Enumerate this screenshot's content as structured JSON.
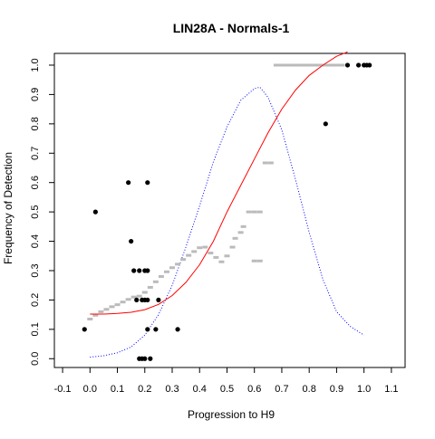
{
  "chart_data": {
    "type": "scatter",
    "title": "LIN28A - Normals-1",
    "xlabel": "Progression to H9",
    "ylabel": "Frequency of Detection",
    "xlim": [
      -0.13,
      1.15
    ],
    "ylim": [
      -0.03,
      1.04
    ],
    "x_ticks": [
      -0.1,
      0,
      0.1,
      0.2,
      0.3,
      0.4,
      0.5,
      0.6,
      0.7,
      0.8,
      0.9,
      1,
      1.1
    ],
    "x_tick_labels": [
      "-0.1",
      "0.0",
      "0.1",
      "0.2",
      "0.3",
      "0.4",
      "0.5",
      "0.6",
      "0.7",
      "0.8",
      "0.9",
      "1.0",
      "1.1"
    ],
    "y_ticks": [
      0,
      0.1,
      0.2,
      0.3,
      0.4,
      0.5,
      0.6,
      0.7,
      0.8,
      0.9,
      1
    ],
    "y_tick_labels": [
      "0.0",
      "0.1",
      "0.2",
      "0.3",
      "0.4",
      "0.5",
      "0.6",
      "0.7",
      "0.8",
      "0.9",
      "1.0"
    ],
    "grid": false,
    "legend": "none",
    "colors": {
      "points": "#000000",
      "smoothed": "#bbbbbb",
      "logistic_fit": "#ff0000",
      "density": "#0000ff"
    },
    "series": [
      {
        "values": [
          {
            "x": -0.02,
            "y": 0.1
          },
          {
            "x": 0.02,
            "y": 0.5
          },
          {
            "x": 0.14,
            "y": 0.6
          },
          {
            "x": 0.15,
            "y": 0.4
          },
          {
            "x": 0.16,
            "y": 0.3
          },
          {
            "x": 0.18,
            "y": 0.3
          },
          {
            "x": 0.2,
            "y": 0.3
          },
          {
            "x": 0.21,
            "y": 0.3
          },
          {
            "x": 0.21,
            "y": 0.6
          },
          {
            "x": 0.17,
            "y": 0.2
          },
          {
            "x": 0.19,
            "y": 0.2
          },
          {
            "x": 0.2,
            "y": 0.2
          },
          {
            "x": 0.21,
            "y": 0.2
          },
          {
            "x": 0.25,
            "y": 0.2
          },
          {
            "x": 0.21,
            "y": 0.1
          },
          {
            "x": 0.24,
            "y": 0.1
          },
          {
            "x": 0.32,
            "y": 0.1
          },
          {
            "x": 0.18,
            "y": 0.0
          },
          {
            "x": 0.19,
            "y": 0.0
          },
          {
            "x": 0.2,
            "y": 0.0
          },
          {
            "x": 0.22,
            "y": 0.0
          },
          {
            "x": 0.86,
            "y": 0.8
          },
          {
            "x": 0.94,
            "y": 1.0
          },
          {
            "x": 0.98,
            "y": 1.0
          },
          {
            "x": 1.0,
            "y": 1.0
          },
          {
            "x": 1.01,
            "y": 1.0
          },
          {
            "x": 1.02,
            "y": 1.0
          }
        ]
      },
      {
        "values": [
          {
            "x": 0.0,
            "y": 0.135
          },
          {
            "x": 0.02,
            "y": 0.148
          },
          {
            "x": 0.04,
            "y": 0.16
          },
          {
            "x": 0.06,
            "y": 0.168
          },
          {
            "x": 0.08,
            "y": 0.177
          },
          {
            "x": 0.1,
            "y": 0.184
          },
          {
            "x": 0.12,
            "y": 0.193
          },
          {
            "x": 0.14,
            "y": 0.202
          },
          {
            "x": 0.16,
            "y": 0.21
          },
          {
            "x": 0.18,
            "y": 0.213
          },
          {
            "x": 0.2,
            "y": 0.226
          },
          {
            "x": 0.22,
            "y": 0.243
          },
          {
            "x": 0.24,
            "y": 0.262
          },
          {
            "x": 0.26,
            "y": 0.28
          },
          {
            "x": 0.28,
            "y": 0.296
          },
          {
            "x": 0.3,
            "y": 0.31
          },
          {
            "x": 0.32,
            "y": 0.322
          },
          {
            "x": 0.34,
            "y": 0.338
          },
          {
            "x": 0.36,
            "y": 0.352
          },
          {
            "x": 0.38,
            "y": 0.365
          },
          {
            "x": 0.4,
            "y": 0.378
          },
          {
            "x": 0.42,
            "y": 0.38
          },
          {
            "x": 0.44,
            "y": 0.36
          },
          {
            "x": 0.46,
            "y": 0.345
          },
          {
            "x": 0.48,
            "y": 0.33
          },
          {
            "x": 0.5,
            "y": 0.35
          },
          {
            "x": 0.52,
            "y": 0.38
          },
          {
            "x": 0.53,
            "y": 0.41
          },
          {
            "x": 0.55,
            "y": 0.43
          },
          {
            "x": 0.56,
            "y": 0.45
          },
          {
            "x": 0.58,
            "y": 0.5
          },
          {
            "x": 0.6,
            "y": 0.5
          },
          {
            "x": 0.62,
            "y": 0.5
          },
          {
            "x": 0.6,
            "y": 0.333
          },
          {
            "x": 0.62,
            "y": 0.333
          },
          {
            "x": 0.64,
            "y": 0.667
          },
          {
            "x": 0.66,
            "y": 0.667
          },
          {
            "x": 0.68,
            "y": 1.0
          },
          {
            "x": 0.72,
            "y": 1.0
          },
          {
            "x": 0.76,
            "y": 1.0
          },
          {
            "x": 0.8,
            "y": 1.0
          },
          {
            "x": 0.84,
            "y": 1.0
          },
          {
            "x": 0.88,
            "y": 1.0
          },
          {
            "x": 0.92,
            "y": 1.0
          }
        ]
      },
      {
        "values": [
          {
            "x": 0.0,
            "y": 0.152
          },
          {
            "x": 0.05,
            "y": 0.152
          },
          {
            "x": 0.1,
            "y": 0.154
          },
          {
            "x": 0.15,
            "y": 0.158
          },
          {
            "x": 0.2,
            "y": 0.167
          },
          {
            "x": 0.25,
            "y": 0.185
          },
          {
            "x": 0.3,
            "y": 0.215
          },
          {
            "x": 0.35,
            "y": 0.26
          },
          {
            "x": 0.4,
            "y": 0.32
          },
          {
            "x": 0.45,
            "y": 0.4
          },
          {
            "x": 0.5,
            "y": 0.5
          },
          {
            "x": 0.55,
            "y": 0.59
          },
          {
            "x": 0.6,
            "y": 0.68
          },
          {
            "x": 0.65,
            "y": 0.77
          },
          {
            "x": 0.7,
            "y": 0.85
          },
          {
            "x": 0.75,
            "y": 0.915
          },
          {
            "x": 0.8,
            "y": 0.965
          },
          {
            "x": 0.85,
            "y": 1.0
          },
          {
            "x": 0.9,
            "y": 1.03
          },
          {
            "x": 0.94,
            "y": 1.045
          }
        ]
      },
      {
        "values": [
          {
            "x": 0.0,
            "y": 0.005
          },
          {
            "x": 0.05,
            "y": 0.01
          },
          {
            "x": 0.1,
            "y": 0.02
          },
          {
            "x": 0.15,
            "y": 0.04
          },
          {
            "x": 0.2,
            "y": 0.08
          },
          {
            "x": 0.25,
            "y": 0.15
          },
          {
            "x": 0.3,
            "y": 0.25
          },
          {
            "x": 0.35,
            "y": 0.38
          },
          {
            "x": 0.4,
            "y": 0.52
          },
          {
            "x": 0.45,
            "y": 0.67
          },
          {
            "x": 0.5,
            "y": 0.79
          },
          {
            "x": 0.55,
            "y": 0.88
          },
          {
            "x": 0.6,
            "y": 0.92
          },
          {
            "x": 0.62,
            "y": 0.925
          },
          {
            "x": 0.65,
            "y": 0.89
          },
          {
            "x": 0.7,
            "y": 0.78
          },
          {
            "x": 0.75,
            "y": 0.61
          },
          {
            "x": 0.8,
            "y": 0.43
          },
          {
            "x": 0.85,
            "y": 0.27
          },
          {
            "x": 0.9,
            "y": 0.16
          },
          {
            "x": 0.95,
            "y": 0.11
          },
          {
            "x": 1.0,
            "y": 0.08
          }
        ]
      }
    ]
  }
}
